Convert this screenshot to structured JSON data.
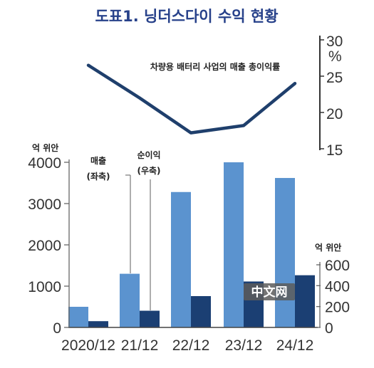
{
  "chart_data": {
    "type": "bar",
    "title": "도표1. 닝더스다이 수익 현황",
    "categories": [
      "2020/12",
      "21/12",
      "22/12",
      "23/12",
      "24/12"
    ],
    "series": [
      {
        "name": "매출 (좌축)",
        "values": [
          500,
          1300,
          3280,
          4000,
          3620
        ],
        "axis": "left",
        "color": "#5b93cf"
      },
      {
        "name": "순이익 (우축)",
        "values": [
          60,
          160,
          300,
          440,
          500
        ],
        "axis": "right",
        "color": "#1b3f73"
      },
      {
        "name": "차량용 배터리 사업의 매출 총이익률",
        "values": [
          26.5,
          22,
          17.2,
          18.2,
          24
        ],
        "axis": "margin",
        "type": "line",
        "color": "#1f3f6c"
      }
    ],
    "left_axis": {
      "unit": "억 위안",
      "ticks": [
        "0",
        "1000",
        "2000",
        "3000",
        "4000"
      ],
      "ylim": [
        0,
        4100
      ]
    },
    "right_axis": {
      "unit": "억 위안",
      "ticks": [
        "0",
        "200",
        "400",
        "600"
      ],
      "ylim": [
        0,
        640
      ]
    },
    "margin_axis": {
      "unit": "%",
      "ticks": [
        "15",
        "20",
        "25",
        "30"
      ],
      "ylim": [
        15,
        30
      ]
    },
    "labels": {
      "sales_line1": "매출",
      "sales_line2": "(좌축)",
      "profit_line1": "순이익",
      "profit_line2": "(우축)",
      "margin_label": "차량용 배터리 사업의 매출 총이익률"
    },
    "legend": "none",
    "grid": false
  },
  "watermark": "中文网"
}
